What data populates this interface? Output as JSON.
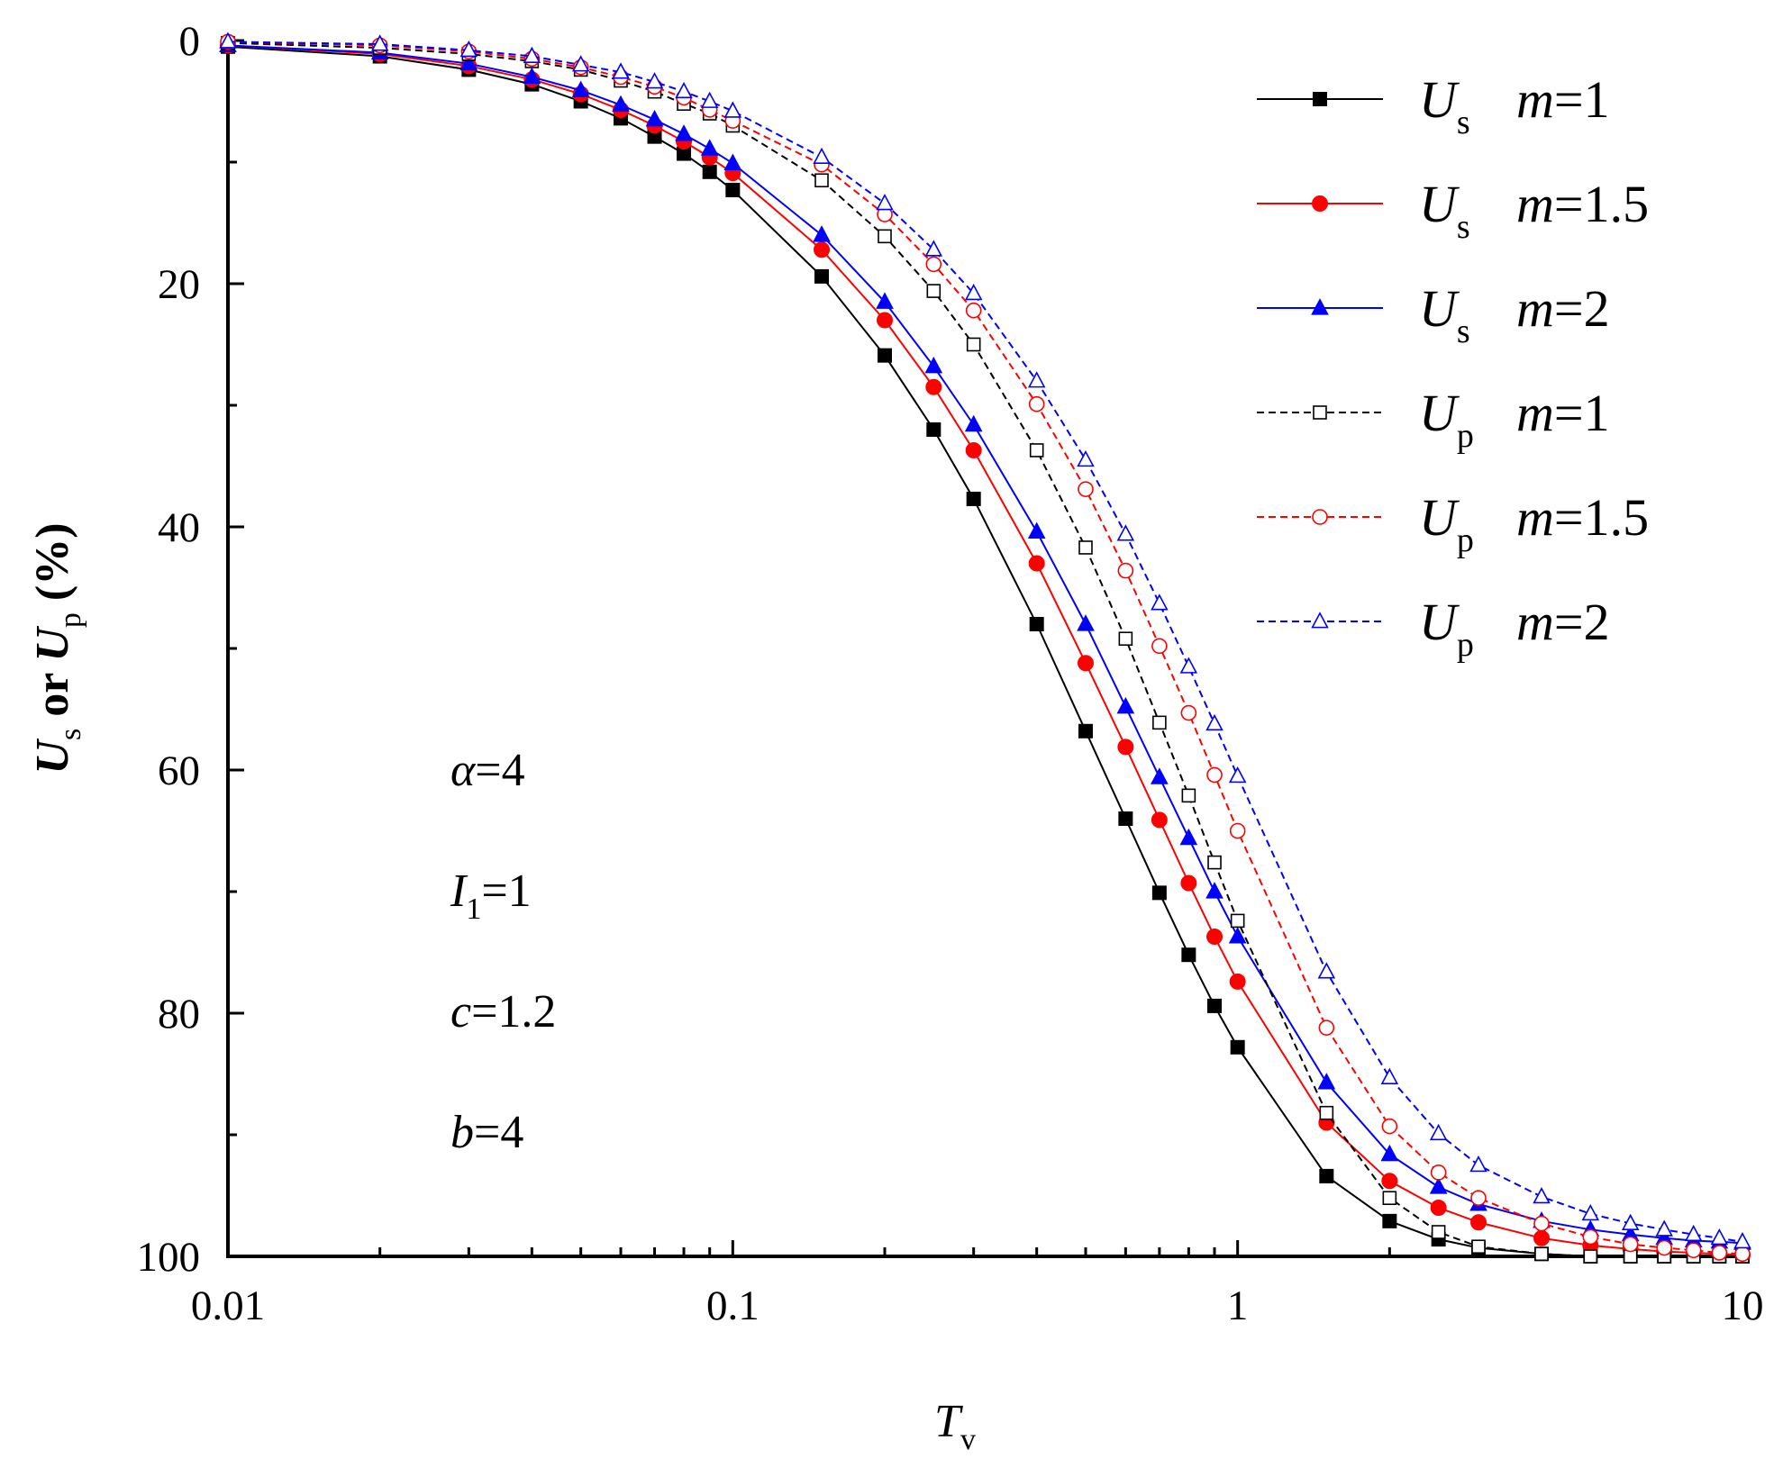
{
  "chart_data": {
    "type": "line",
    "x_scale": "log",
    "xlim": [
      0.01,
      10
    ],
    "ylim": [
      0,
      100
    ],
    "y_inverted": true,
    "x_ticks": [
      "0.01",
      "0.1",
      "1",
      "10"
    ],
    "y_ticks": [
      "0",
      "20",
      "40",
      "60",
      "80",
      "100"
    ],
    "x_tick_values": [
      0.01,
      0.1,
      1,
      10
    ],
    "y_tick_values": [
      0,
      20,
      40,
      60,
      80,
      100
    ],
    "xlabel": {
      "main": "T",
      "sub": "v"
    },
    "ylabel": {
      "p1": "U",
      "s1": "s",
      "mid": " or ",
      "p2": "U",
      "s2": "p",
      "end": " (%)"
    },
    "legend_position": "top-right",
    "x": [
      0.01,
      0.02,
      0.03,
      0.04,
      0.05,
      0.06,
      0.07,
      0.08,
      0.09,
      0.1,
      0.15,
      0.2,
      0.25,
      0.3,
      0.4,
      0.5,
      0.6,
      0.7,
      0.8,
      0.9,
      1,
      1.5,
      2,
      2.5,
      3,
      4,
      5,
      6,
      7,
      8,
      9,
      10
    ],
    "series": [
      {
        "name": "Us m=1",
        "legend": {
          "var": "U",
          "sub": "s",
          "m": "m",
          "val": "=1"
        },
        "color": "#000000",
        "dash": "solid",
        "marker": "square",
        "filled": true,
        "values": [
          0.5,
          1.3,
          2.4,
          3.6,
          5.0,
          6.4,
          7.9,
          9.3,
          10.8,
          12.3,
          19.4,
          25.9,
          32.0,
          37.7,
          48.0,
          56.8,
          64.0,
          70.1,
          75.2,
          79.4,
          82.8,
          93.4,
          97.1,
          98.6,
          99.3,
          99.8,
          100,
          100,
          100,
          100,
          100,
          100
        ]
      },
      {
        "name": "Us m=1.5",
        "legend": {
          "var": "U",
          "sub": "s",
          "m": "m",
          "val": "=1.5"
        },
        "color": "#ff0000",
        "dash": "solid",
        "marker": "circle",
        "filled": true,
        "values": [
          0.4,
          1.1,
          2.1,
          3.2,
          4.4,
          5.7,
          7.0,
          8.3,
          9.6,
          10.9,
          17.2,
          23.0,
          28.5,
          33.7,
          43.0,
          51.2,
          58.1,
          64.1,
          69.3,
          73.7,
          77.4,
          89.0,
          93.8,
          96.0,
          97.2,
          98.5,
          99.1,
          99.4,
          99.6,
          99.7,
          99.8,
          99.9
        ]
      },
      {
        "name": "Us m=2",
        "legend": {
          "var": "U",
          "sub": "s",
          "m": "m",
          "val": "=2"
        },
        "color": "#0000ff",
        "dash": "solid",
        "marker": "triangle",
        "filled": true,
        "values": [
          0.4,
          1.0,
          1.9,
          3.0,
          4.1,
          5.3,
          6.5,
          7.7,
          8.9,
          10.1,
          16.0,
          21.5,
          26.8,
          31.6,
          40.4,
          48.0,
          54.8,
          60.6,
          65.6,
          70.0,
          73.7,
          85.7,
          91.6,
          94.3,
          95.7,
          97.1,
          97.8,
          98.2,
          98.5,
          98.7,
          98.8,
          98.9
        ]
      },
      {
        "name": "Up m=1",
        "legend": {
          "var": "U",
          "sub": "p",
          "m": "m",
          "val": "=1"
        },
        "color": "#000000",
        "dash": "dashed",
        "marker": "square",
        "filled": false,
        "values": [
          0.2,
          0.6,
          1.1,
          1.7,
          2.4,
          3.3,
          4.2,
          5.2,
          6.0,
          7.0,
          11.5,
          16.1,
          20.6,
          25.0,
          33.7,
          41.7,
          49.2,
          56.1,
          62.1,
          67.6,
          72.4,
          88.2,
          95.2,
          98.0,
          99.2,
          99.8,
          100,
          100,
          100,
          100,
          100,
          100
        ]
      },
      {
        "name": "Up m=1.5",
        "legend": {
          "var": "U",
          "sub": "p",
          "m": "m",
          "val": "=1.5"
        },
        "color": "#ff0000",
        "dash": "dashed",
        "marker": "circle",
        "filled": false,
        "values": [
          0.1,
          0.4,
          0.9,
          1.5,
          2.2,
          3.0,
          3.8,
          4.7,
          5.7,
          6.6,
          10.2,
          14.3,
          18.4,
          22.2,
          29.9,
          36.9,
          43.6,
          49.8,
          55.3,
          60.4,
          65.0,
          81.2,
          89.3,
          93.1,
          95.2,
          97.3,
          98.4,
          99.0,
          99.3,
          99.5,
          99.7,
          99.8
        ]
      },
      {
        "name": "Up m=2",
        "legend": {
          "var": "U",
          "sub": "p",
          "m": "m",
          "val": "=2"
        },
        "color": "#0000ff",
        "dash": "dashed",
        "marker": "triangle",
        "filled": false,
        "values": [
          0.1,
          0.3,
          0.8,
          1.3,
          2.0,
          2.6,
          3.4,
          4.2,
          5.0,
          5.8,
          9.6,
          13.4,
          17.2,
          20.8,
          28.0,
          34.5,
          40.6,
          46.3,
          51.5,
          56.2,
          60.5,
          76.6,
          85.3,
          89.9,
          92.5,
          95.1,
          96.5,
          97.3,
          97.8,
          98.2,
          98.5,
          98.8
        ]
      }
    ],
    "annotations": [
      {
        "var": "α",
        "sub": "",
        "val": "=4"
      },
      {
        "var": "I",
        "sub": "1",
        "val": "=1"
      },
      {
        "var": "c",
        "sub": "",
        "val": "=1.2"
      },
      {
        "var": "b",
        "sub": "",
        "val": "=4"
      }
    ]
  }
}
